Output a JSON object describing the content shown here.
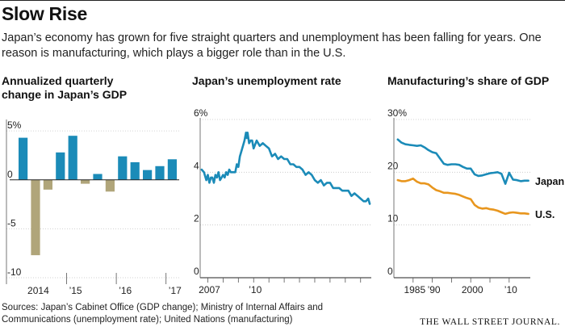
{
  "header": {
    "title": "Slow Rise",
    "subtitle": "Japan’s economy has grown for five straight quarters and unemployment has been falling for years. One reason is manufacturing, which plays a bigger role than in the U.S."
  },
  "colors": {
    "blue": "#1b8bb8",
    "tan": "#b0a57a",
    "orange": "#e8961e",
    "ink": "#222222",
    "grid": "#bfbfbf"
  },
  "chart_data": [
    {
      "id": "gdp",
      "type": "bar",
      "title_lines": [
        "Annualized quarterly",
        "change in Japan’s GDP"
      ],
      "ylim": [
        -10,
        6
      ],
      "yticks": [
        {
          "v": 5,
          "label": "5%"
        },
        {
          "v": 0,
          "label": "0"
        },
        {
          "v": -5,
          "label": "-5"
        },
        {
          "v": -10,
          "label": "-10"
        }
      ],
      "x_labels": [
        {
          "i": 1.5,
          "label": "2014"
        },
        {
          "i": 4.5,
          "label": "’15"
        },
        {
          "i": 8.5,
          "label": "’16"
        },
        {
          "i": 12.5,
          "label": "’17"
        }
      ],
      "year_boundaries": [
        4,
        8,
        12
      ],
      "values": [
        4.3,
        -7.7,
        -1.0,
        2.8,
        4.5,
        -0.4,
        0.6,
        -1.2,
        2.4,
        1.8,
        1.0,
        1.4,
        2.1
      ],
      "positive_color": "#1b8bb8",
      "negative_color": "#b0a57a"
    },
    {
      "id": "unemp",
      "type": "line",
      "title_lines": [
        "Japan’s unemployment rate"
      ],
      "ylim": [
        0,
        6
      ],
      "yticks": [
        {
          "v": 6,
          "label": "6%"
        },
        {
          "v": 4,
          "label": "4"
        },
        {
          "v": 2,
          "label": "2"
        },
        {
          "v": 0,
          "label": "0"
        }
      ],
      "xlim": [
        2006.5,
        2017.7
      ],
      "x_labels": [
        {
          "v": 2007,
          "label": "2007"
        },
        {
          "v": 2010,
          "label": "’10"
        }
      ],
      "x_ticks": [
        2007,
        2008,
        2009,
        2010,
        2011,
        2012,
        2013,
        2014,
        2015,
        2016,
        2017
      ],
      "series": [
        {
          "name": "Japan",
          "color": "#1b8bb8",
          "x": [
            2006.6,
            2006.75,
            2006.9,
            2007.0,
            2007.1,
            2007.2,
            2007.3,
            2007.4,
            2007.5,
            2007.6,
            2007.7,
            2007.8,
            2007.9,
            2008.0,
            2008.1,
            2008.2,
            2008.3,
            2008.4,
            2008.5,
            2008.6,
            2008.7,
            2008.8,
            2008.9,
            2009.0,
            2009.1,
            2009.2,
            2009.3,
            2009.4,
            2009.5,
            2009.55,
            2009.6,
            2009.7,
            2009.8,
            2009.9,
            2010.0,
            2010.2,
            2010.4,
            2010.6,
            2010.8,
            2011.0,
            2011.2,
            2011.4,
            2011.6,
            2011.8,
            2012.0,
            2012.2,
            2012.4,
            2012.6,
            2012.8,
            2013.0,
            2013.2,
            2013.4,
            2013.6,
            2013.8,
            2014.0,
            2014.2,
            2014.4,
            2014.6,
            2014.8,
            2015.0,
            2015.2,
            2015.4,
            2015.6,
            2015.8,
            2016.0,
            2016.2,
            2016.4,
            2016.6,
            2016.8,
            2017.0,
            2017.2,
            2017.35,
            2017.5,
            2017.6
          ],
          "y": [
            4.1,
            4.0,
            3.7,
            3.9,
            3.6,
            3.8,
            3.8,
            3.6,
            3.9,
            3.8,
            4.0,
            3.7,
            3.8,
            3.9,
            3.8,
            4.0,
            3.9,
            4.1,
            4.0,
            4.0,
            4.0,
            4.0,
            4.3,
            4.2,
            4.6,
            4.8,
            5.0,
            5.2,
            5.5,
            5.3,
            5.5,
            5.1,
            5.2,
            5.2,
            4.9,
            5.2,
            5.0,
            5.1,
            5.0,
            4.9,
            4.6,
            4.7,
            4.5,
            4.6,
            4.5,
            4.5,
            4.3,
            4.3,
            4.2,
            4.2,
            4.1,
            3.9,
            4.0,
            3.9,
            3.7,
            3.6,
            3.7,
            3.5,
            3.6,
            3.6,
            3.4,
            3.4,
            3.4,
            3.3,
            3.3,
            3.3,
            3.1,
            3.2,
            3.1,
            3.0,
            2.9,
            2.9,
            3.0,
            2.8
          ]
        }
      ]
    },
    {
      "id": "mfg",
      "type": "line",
      "title_lines": [
        "Manufacturing’s share of GDP"
      ],
      "ylim": [
        0,
        30
      ],
      "yticks": [
        {
          "v": 30,
          "label": "30%"
        },
        {
          "v": 20,
          "label": "20"
        },
        {
          "v": 10,
          "label": "10"
        },
        {
          "v": 0,
          "label": "0"
        }
      ],
      "xlim": [
        1980,
        2015.5
      ],
      "x_labels": [
        {
          "v": 1985,
          "label": "1985"
        },
        {
          "v": 1990,
          "label": "’90"
        },
        {
          "v": 2000,
          "label": "2000"
        },
        {
          "v": 2010,
          "label": "’10"
        }
      ],
      "x_ticks": [
        1985,
        1990,
        1995,
        2000,
        2005,
        2010
      ],
      "series": [
        {
          "name": "Japan",
          "color": "#1b8bb8",
          "x": [
            1981,
            1982,
            1983,
            1984,
            1985,
            1986,
            1987,
            1988,
            1989,
            1990,
            1991,
            1992,
            1993,
            1994,
            1995,
            1996,
            1997,
            1998,
            1999,
            2000,
            2001,
            2002,
            2003,
            2004,
            2005,
            2006,
            2007,
            2008,
            2009,
            2010,
            2011,
            2012,
            2013,
            2014,
            2015
          ],
          "y": [
            26.2,
            25.6,
            25.3,
            25.2,
            25.1,
            25.0,
            25.1,
            24.7,
            24.2,
            23.8,
            23.6,
            22.6,
            21.6,
            21.4,
            21.5,
            21.5,
            21.4,
            21.0,
            20.7,
            20.7,
            19.6,
            19.3,
            19.4,
            19.6,
            19.8,
            19.9,
            20.0,
            19.7,
            17.8,
            19.9,
            18.6,
            18.5,
            18.3,
            18.4,
            18.4
          ]
        },
        {
          "name": "U.S.",
          "color": "#e8961e",
          "x": [
            1981,
            1982,
            1983,
            1984,
            1985,
            1986,
            1987,
            1988,
            1989,
            1990,
            1991,
            1992,
            1993,
            1994,
            1995,
            1996,
            1997,
            1998,
            1999,
            2000,
            2001,
            2002,
            2003,
            2004,
            2005,
            2006,
            2007,
            2008,
            2009,
            2010,
            2011,
            2012,
            2013,
            2014,
            2015
          ],
          "y": [
            18.5,
            18.3,
            18.3,
            18.5,
            18.8,
            18.2,
            17.9,
            17.9,
            17.7,
            17.1,
            16.6,
            16.4,
            16.1,
            16.1,
            16.0,
            15.9,
            15.7,
            15.4,
            15.1,
            14.9,
            13.8,
            13.3,
            13.1,
            13.2,
            13.0,
            12.9,
            12.7,
            12.4,
            12.1,
            12.3,
            12.4,
            12.3,
            12.2,
            12.2,
            12.1
          ]
        }
      ]
    }
  ],
  "footer": {
    "sources": "Sources: Japan’s Cabinet Office (GDP change); Ministry of Internal Affairs and Communications (unemployment rate); United Nations (manufacturing)",
    "brand": "THE WALL STREET JOURNAL."
  }
}
